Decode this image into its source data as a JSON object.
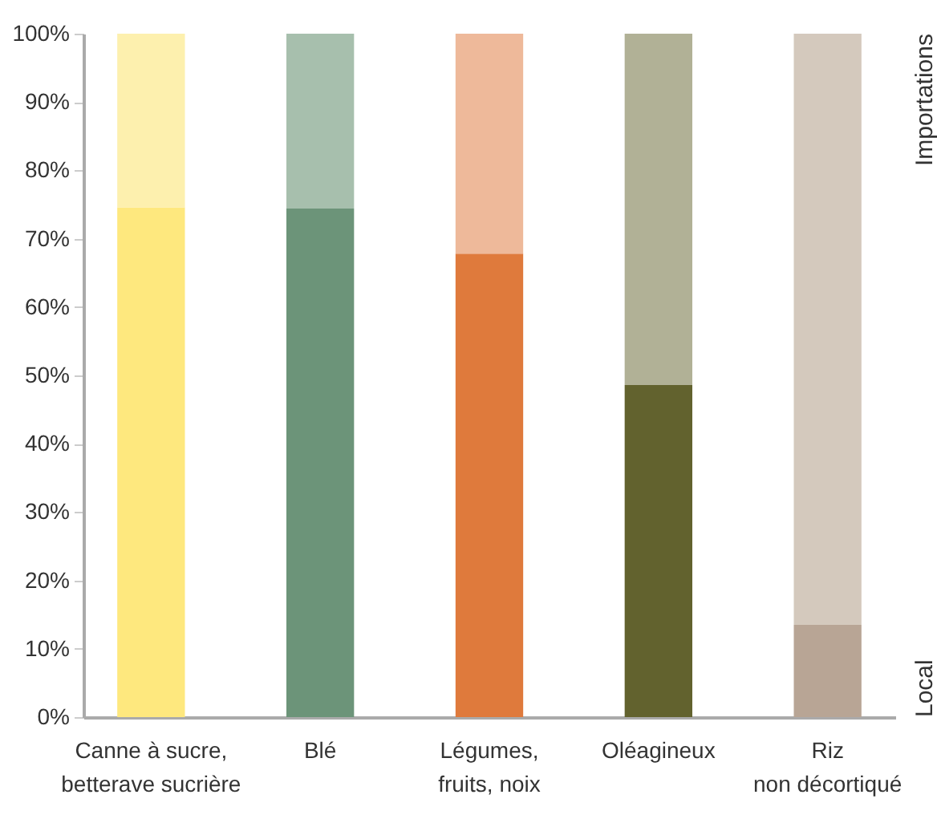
{
  "chart_data": {
    "type": "bar",
    "stacked": true,
    "categories": [
      "Canne à sucre,\nbetterave sucrière",
      "Blé",
      "Légumes,\nfruits, noix",
      "Oléagineux",
      "Riz\nnon décortiqué"
    ],
    "series": [
      {
        "name": "Local",
        "colors": [
          "#fee87e",
          "#6c9479",
          "#df7a3c",
          "#62622e",
          "#b8a595"
        ],
        "values": [
          74.6,
          74.4,
          67.8,
          48.6,
          13.5
        ]
      },
      {
        "name": "Importations",
        "colors": [
          "#fdf0ae",
          "#a7bfad",
          "#eeb99a",
          "#b1b196",
          "#d4c9bd"
        ],
        "values": [
          25.4,
          25.6,
          32.2,
          51.4,
          86.5
        ]
      }
    ],
    "ylim": [
      0,
      100
    ],
    "yticks": [
      {
        "value": 0,
        "label": "0%"
      },
      {
        "value": 10,
        "label": "10%"
      },
      {
        "value": 20,
        "label": "20%"
      },
      {
        "value": 30,
        "label": "30%"
      },
      {
        "value": 40,
        "label": "40%"
      },
      {
        "value": 50,
        "label": "50%"
      },
      {
        "value": 60,
        "label": "60%"
      },
      {
        "value": 70,
        "label": "70%"
      },
      {
        "value": 80,
        "label": "80%"
      },
      {
        "value": 90,
        "label": "90%"
      },
      {
        "value": 100,
        "label": "100%"
      }
    ]
  }
}
